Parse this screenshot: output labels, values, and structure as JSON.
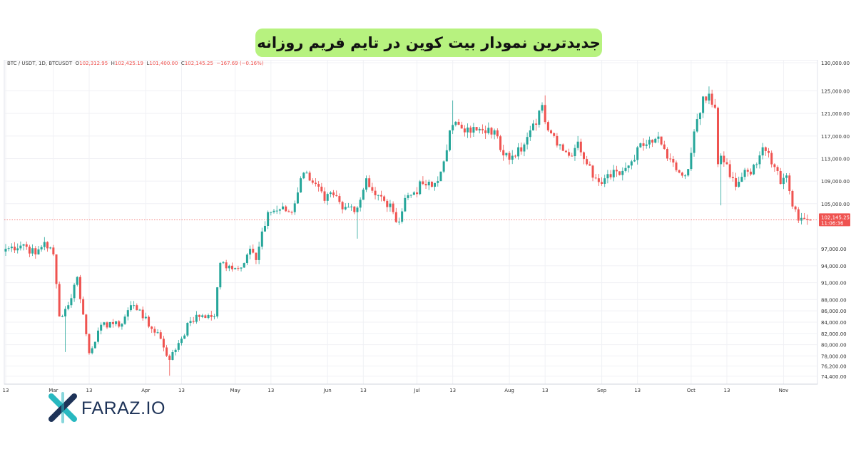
{
  "banner": {
    "title": "جدیدترین نمودار بیت کوین در تایم فریم روزانه"
  },
  "legend": {
    "symbol": "BTC / USDT, 1D, BTCUSDT",
    "open_label": "O",
    "open": "102,312.95",
    "high_label": "H",
    "high": "102,425.19",
    "low_label": "L",
    "low": "101,400.00",
    "close_label": "C",
    "close": "102,145.25",
    "change": "−167.69 (−0.16%)"
  },
  "price_badge": {
    "price": "102,145.25",
    "countdown": "11:06:36"
  },
  "logo": {
    "text": "FARAZ.IO"
  },
  "colors": {
    "up": "#26a69a",
    "down": "#ef5350",
    "banner": "#b7f27f",
    "logo_blue": "#1e3358",
    "logo_teal": "#28b8c0"
  },
  "chart_data": {
    "type": "candlestick",
    "title": "",
    "xlabel": "",
    "ylabel": "",
    "ylim": [
      73000,
      130500
    ],
    "grid": true,
    "y_ticks": [
      "130,000.00",
      "125,000.00",
      "121,000.00",
      "117,000.00",
      "113,000.00",
      "109,000.00",
      "105,000.00",
      "97,000.00",
      "94,000.00",
      "91,000.00",
      "88,000.00",
      "86,000.00",
      "84,000.00",
      "82,000.00",
      "80,000.00",
      "78,000.00",
      "76,200.00",
      "74,400.00"
    ],
    "y_tick_values": [
      130000,
      125000,
      121000,
      117000,
      113000,
      109000,
      105000,
      97000,
      94000,
      91000,
      88000,
      86000,
      84000,
      82000,
      80000,
      78000,
      76200,
      74400
    ],
    "x_ticks": [
      {
        "label": "13",
        "day": 0
      },
      {
        "label": "Mar",
        "day": 16
      },
      {
        "label": "13",
        "day": 28
      },
      {
        "label": "Apr",
        "day": 47
      },
      {
        "label": "13",
        "day": 59
      },
      {
        "label": "May",
        "day": 77
      },
      {
        "label": "13",
        "day": 89
      },
      {
        "label": "Jun",
        "day": 108
      },
      {
        "label": "13",
        "day": 120
      },
      {
        "label": "Jul",
        "day": 138
      },
      {
        "label": "13",
        "day": 150
      },
      {
        "label": "Aug",
        "day": 169
      },
      {
        "label": "13",
        "day": 181
      },
      {
        "label": "Sep",
        "day": 200
      },
      {
        "label": "13",
        "day": 212
      },
      {
        "label": "Oct",
        "day": 230
      },
      {
        "label": "13",
        "day": 242
      },
      {
        "label": "Nov",
        "day": 261
      }
    ],
    "last_price": 102145.25,
    "x_range_days": [
      0,
      270
    ],
    "anchors": [
      [
        0,
        97000
      ],
      [
        6,
        97800
      ],
      [
        10,
        96000
      ],
      [
        13,
        98200
      ],
      [
        16,
        96000
      ],
      [
        18,
        85000
      ],
      [
        21,
        87000
      ],
      [
        24,
        92000
      ],
      [
        28,
        78500
      ],
      [
        31,
        82500
      ],
      [
        35,
        84000
      ],
      [
        38,
        83200
      ],
      [
        42,
        87000
      ],
      [
        45,
        86200
      ],
      [
        48,
        83200
      ],
      [
        51,
        82200
      ],
      [
        55,
        77300
      ],
      [
        58,
        80300
      ],
      [
        62,
        84200
      ],
      [
        66,
        85200
      ],
      [
        70,
        85000
      ],
      [
        72,
        94500
      ],
      [
        75,
        94000
      ],
      [
        78,
        93500
      ],
      [
        82,
        97000
      ],
      [
        84,
        95000
      ],
      [
        88,
        103500
      ],
      [
        92,
        104000
      ],
      [
        96,
        103500
      ],
      [
        99,
        109500
      ],
      [
        101,
        110500
      ],
      [
        104,
        108500
      ],
      [
        107,
        105500
      ],
      [
        110,
        106500
      ],
      [
        113,
        104000
      ],
      [
        116,
        104500
      ],
      [
        118,
        104300
      ],
      [
        121,
        109500
      ],
      [
        124,
        106500
      ],
      [
        127,
        105500
      ],
      [
        130,
        103500
      ],
      [
        132,
        101800
      ],
      [
        134,
        106000
      ],
      [
        137,
        107000
      ],
      [
        140,
        108500
      ],
      [
        143,
        108000
      ],
      [
        145,
        109000
      ],
      [
        147,
        112500
      ],
      [
        149,
        118000
      ],
      [
        152,
        119000
      ],
      [
        155,
        118500
      ],
      [
        158,
        118000
      ],
      [
        161,
        117500
      ],
      [
        164,
        118000
      ],
      [
        166,
        114500
      ],
      [
        168,
        114000
      ],
      [
        170,
        113500
      ],
      [
        172,
        115000
      ],
      [
        174,
        115500
      ],
      [
        176,
        118000
      ],
      [
        178,
        119000
      ],
      [
        180,
        122500
      ],
      [
        182,
        118000
      ],
      [
        184,
        117000
      ],
      [
        186,
        115500
      ],
      [
        189,
        113500
      ],
      [
        192,
        116000
      ],
      [
        195,
        112000
      ],
      [
        198,
        109500
      ],
      [
        201,
        109500
      ],
      [
        204,
        111000
      ],
      [
        207,
        110800
      ],
      [
        210,
        112500
      ],
      [
        212,
        115000
      ],
      [
        215,
        115500
      ],
      [
        218,
        116500
      ],
      [
        220,
        115500
      ],
      [
        222,
        113000
      ],
      [
        224,
        112300
      ],
      [
        226,
        110500
      ],
      [
        228,
        110000
      ],
      [
        230,
        114000
      ],
      [
        232,
        120000
      ],
      [
        234,
        124000
      ],
      [
        236,
        124500
      ],
      [
        238,
        122000
      ],
      [
        239,
        112000
      ],
      [
        240,
        113500
      ],
      [
        242,
        112000
      ],
      [
        245,
        108000
      ],
      [
        248,
        111000
      ],
      [
        250,
        110200
      ],
      [
        252,
        112000
      ],
      [
        254,
        115000
      ],
      [
        256,
        114000
      ],
      [
        258,
        111500
      ],
      [
        260,
        108500
      ],
      [
        262,
        110000
      ],
      [
        264,
        104500
      ],
      [
        266,
        102000
      ],
      [
        268,
        102300
      ],
      [
        270,
        102145
      ]
    ],
    "wick_extremes": [
      {
        "day": 20,
        "low": 78700
      },
      {
        "day": 55,
        "low": 74500
      },
      {
        "day": 240,
        "low": 104700
      },
      {
        "day": 118,
        "low": 98800
      },
      {
        "day": 236,
        "high": 125800
      },
      {
        "day": 181,
        "high": 124200
      },
      {
        "day": 150,
        "high": 123300
      }
    ]
  }
}
